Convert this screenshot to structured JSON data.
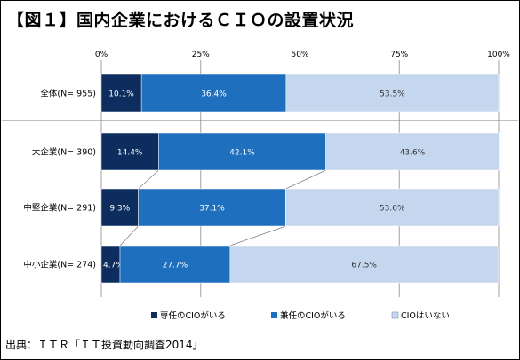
{
  "title": "【図１】国内企業におけるＣＩＯの設置状況",
  "source": "出典：ＩＴＲ「ＩＴ投資動向調査2014」",
  "colors": {
    "dedicated": "#0d2d5e",
    "concurrent": "#1f6fbf",
    "none": "#c5d7ef",
    "grid": "#a0a0a0",
    "connector": "#808080"
  },
  "chart_data": {
    "type": "bar",
    "orientation": "horizontal",
    "stacked": "percent",
    "title": "",
    "categories": [
      "全体(N= 955)",
      "大企業(N= 390)",
      "中堅企業(N= 291)",
      "中小企業(N= 274)"
    ],
    "series": [
      {
        "name": "専任のCIOがいる",
        "values": [
          10.1,
          14.4,
          9.3,
          4.7
        ],
        "labels": [
          "10.1%",
          "14.4%",
          "9.3%",
          "4.7%"
        ]
      },
      {
        "name": "兼任のCIOがいる",
        "values": [
          36.4,
          42.1,
          37.1,
          27.7
        ],
        "labels": [
          "36.4%",
          "42.1%",
          "37.1%",
          "27.7%"
        ]
      },
      {
        "name": "CIOはいない",
        "values": [
          53.5,
          43.6,
          53.6,
          67.5
        ],
        "labels": [
          "53.5%",
          "43.6%",
          "53.6%",
          "67.5%"
        ]
      }
    ],
    "xlim": [
      0,
      100
    ],
    "ticks": [
      "0%",
      "25%",
      "50%",
      "75%",
      "100%"
    ],
    "grid": true,
    "legend_position": "bottom"
  }
}
